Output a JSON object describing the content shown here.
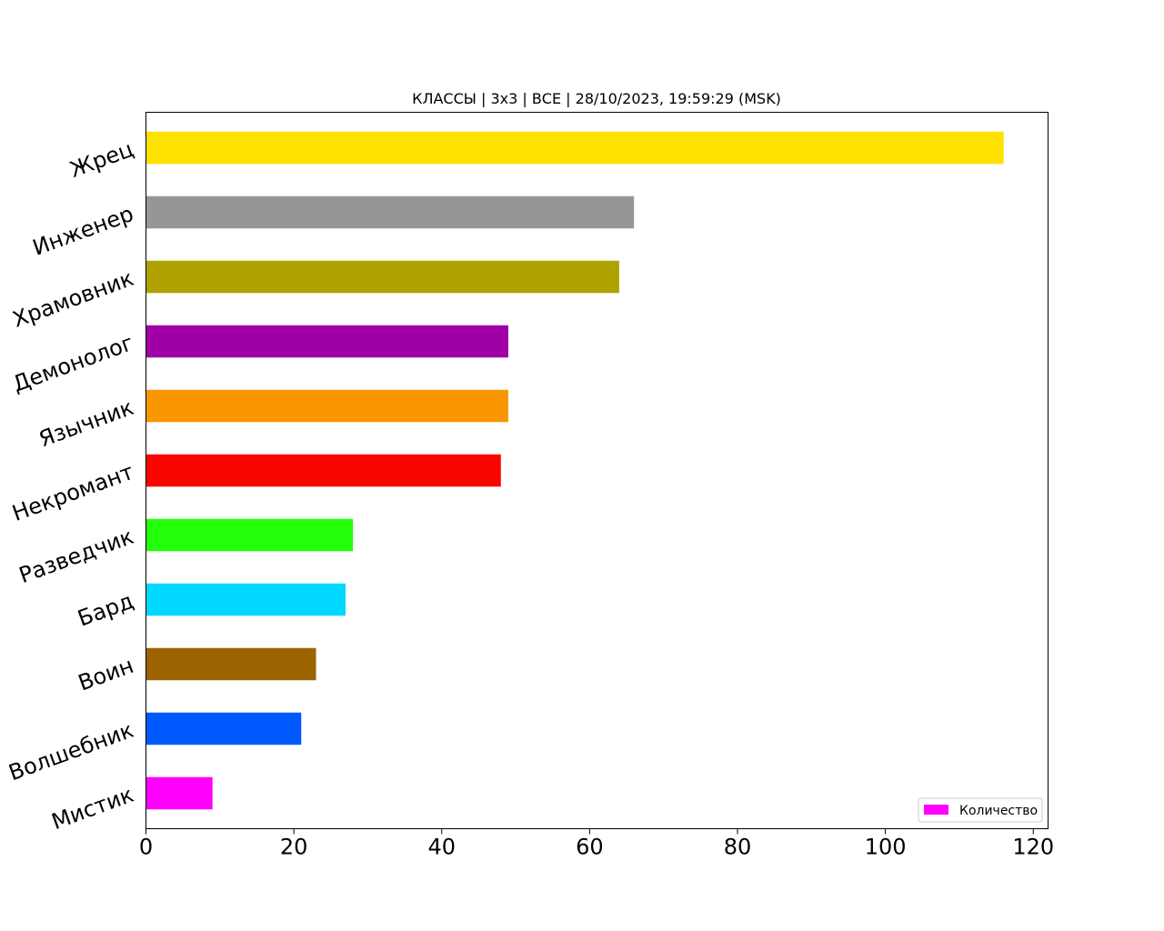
{
  "chart_data": {
    "type": "bar",
    "orientation": "horizontal",
    "title": "КЛАССЫ | 3х3 | ВСЕ | 28/10/2023, 19:59:29 (MSK)",
    "xlabel": "",
    "ylabel": "",
    "xlim": [
      0,
      122
    ],
    "xticks": [
      0,
      20,
      40,
      60,
      80,
      100,
      120
    ],
    "grid": false,
    "legend_position": "lower-right",
    "series": [
      {
        "name": "Количество",
        "categories": [
          "Жрец",
          "Инженер",
          "Храмовник",
          "Демонолог",
          "Язычник",
          "Некромант",
          "Разведчик",
          "Бард",
          "Воин",
          "Волшебник",
          "Мистик"
        ],
        "values": [
          116,
          66,
          64,
          49,
          49,
          48,
          28,
          27,
          23,
          21,
          9
        ],
        "colors": [
          "#ffe100",
          "#969696",
          "#afa200",
          "#a000a8",
          "#fa9600",
          "#fa0600",
          "#24ff0a",
          "#00d8ff",
          "#9b6400",
          "#0058ff",
          "#ff00ff"
        ]
      }
    ],
    "legend_color": "#ff00ff"
  }
}
